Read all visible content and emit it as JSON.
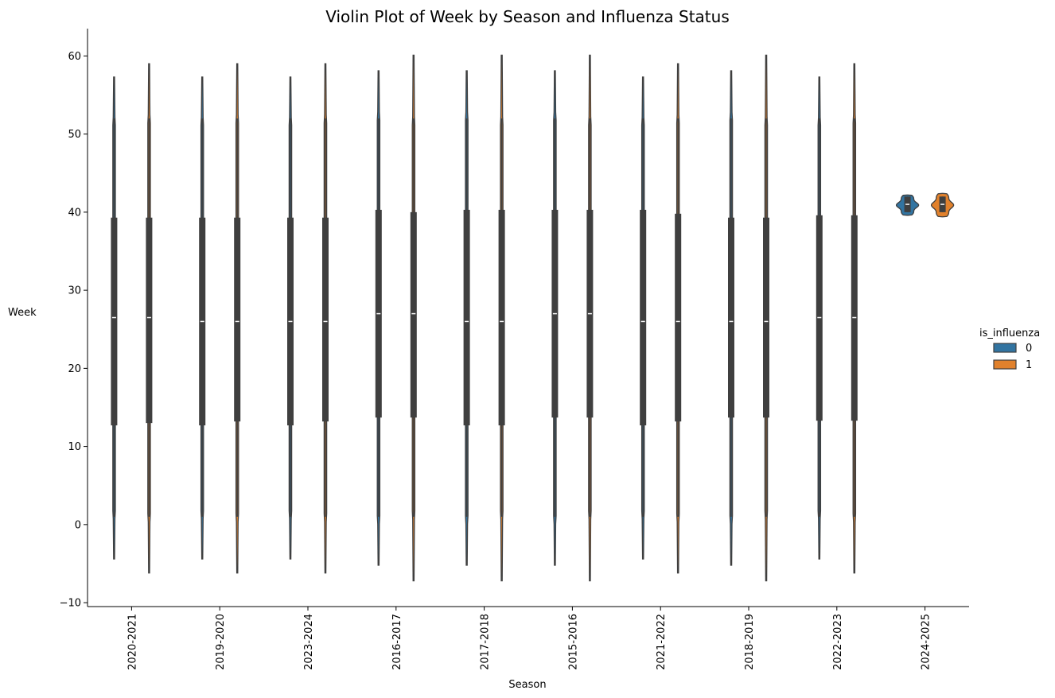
{
  "chart_data": {
    "type": "violin",
    "title": "Violin Plot of Week by Season and Influenza Status",
    "xlabel": "Season",
    "ylabel": "Week",
    "ylim": [
      -10.5,
      63.5
    ],
    "yticks": [
      -10,
      0,
      10,
      20,
      30,
      40,
      50,
      60
    ],
    "grid": false,
    "categories": [
      "2020-2021",
      "2019-2020",
      "2023-2024",
      "2016-2017",
      "2017-2018",
      "2015-2016",
      "2021-2022",
      "2018-2019",
      "2022-2023",
      "2024-2025"
    ],
    "legend": {
      "title": "is_influenza",
      "placement": "right",
      "entries": [
        {
          "label": "0",
          "color": "#3274a1"
        },
        {
          "label": "1",
          "color": "#e1812c"
        }
      ]
    },
    "series": [
      {
        "name": "0",
        "color": "#3274a1",
        "stats": [
          {
            "min": -4.4,
            "max": 57.3,
            "q1": 12.7,
            "median": 26.5,
            "q3": 39.3,
            "whisker_low": 1,
            "whisker_high": 52
          },
          {
            "min": -4.4,
            "max": 57.3,
            "q1": 12.7,
            "median": 26.0,
            "q3": 39.3,
            "whisker_low": 1,
            "whisker_high": 52
          },
          {
            "min": -4.4,
            "max": 57.3,
            "q1": 12.7,
            "median": 26.0,
            "q3": 39.3,
            "whisker_low": 1,
            "whisker_high": 52
          },
          {
            "min": -5.2,
            "max": 58.1,
            "q1": 13.7,
            "median": 27.0,
            "q3": 40.3,
            "whisker_low": 1,
            "whisker_high": 52
          },
          {
            "min": -5.2,
            "max": 58.1,
            "q1": 12.7,
            "median": 26.0,
            "q3": 40.3,
            "whisker_low": 1,
            "whisker_high": 52
          },
          {
            "min": -5.2,
            "max": 58.1,
            "q1": 13.7,
            "median": 27.0,
            "q3": 40.3,
            "whisker_low": 1,
            "whisker_high": 52
          },
          {
            "min": -4.4,
            "max": 57.3,
            "q1": 12.7,
            "median": 26.0,
            "q3": 40.3,
            "whisker_low": 1,
            "whisker_high": 52
          },
          {
            "min": -5.2,
            "max": 58.1,
            "q1": 13.7,
            "median": 26.0,
            "q3": 39.3,
            "whisker_low": 1,
            "whisker_high": 52
          },
          {
            "min": -4.4,
            "max": 57.3,
            "q1": 13.3,
            "median": 26.5,
            "q3": 39.6,
            "whisker_low": 1,
            "whisker_high": 52
          },
          {
            "min": 39.6,
            "max": 42.2,
            "q1": 40.0,
            "median": 41.0,
            "q3": 42.0,
            "whisker_low": 40.0,
            "whisker_high": 42.0
          }
        ]
      },
      {
        "name": "1",
        "color": "#e1812c",
        "stats": [
          {
            "min": -6.2,
            "max": 59.0,
            "q1": 13.0,
            "median": 26.5,
            "q3": 39.3,
            "whisker_low": 1,
            "whisker_high": 52
          },
          {
            "min": -6.2,
            "max": 59.0,
            "q1": 13.2,
            "median": 26.0,
            "q3": 39.3,
            "whisker_low": 1,
            "whisker_high": 52
          },
          {
            "min": -6.2,
            "max": 59.0,
            "q1": 13.2,
            "median": 26.0,
            "q3": 39.3,
            "whisker_low": 1,
            "whisker_high": 52
          },
          {
            "min": -7.2,
            "max": 60.1,
            "q1": 13.7,
            "median": 27.0,
            "q3": 40.0,
            "whisker_low": 1,
            "whisker_high": 52
          },
          {
            "min": -7.2,
            "max": 60.1,
            "q1": 12.7,
            "median": 26.0,
            "q3": 40.3,
            "whisker_low": 1,
            "whisker_high": 52
          },
          {
            "min": -7.2,
            "max": 60.1,
            "q1": 13.7,
            "median": 27.0,
            "q3": 40.3,
            "whisker_low": 1,
            "whisker_high": 52
          },
          {
            "min": -6.2,
            "max": 59.0,
            "q1": 13.2,
            "median": 26.0,
            "q3": 39.8,
            "whisker_low": 1,
            "whisker_high": 52
          },
          {
            "min": -7.2,
            "max": 60.1,
            "q1": 13.7,
            "median": 26.0,
            "q3": 39.3,
            "whisker_low": 1,
            "whisker_high": 52
          },
          {
            "min": -6.2,
            "max": 59.0,
            "q1": 13.3,
            "median": 26.5,
            "q3": 39.6,
            "whisker_low": 1,
            "whisker_high": 52
          },
          {
            "min": 39.4,
            "max": 42.4,
            "q1": 40.0,
            "median": 41.0,
            "q3": 42.0,
            "whisker_low": 40.0,
            "whisker_high": 42.0
          }
        ]
      }
    ]
  }
}
